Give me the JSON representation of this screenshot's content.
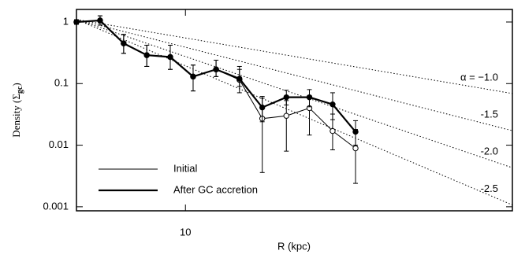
{
  "chart_data": {
    "type": "line",
    "xlabel": "R (kpc)",
    "ylabel_parts": [
      "Density (Σ",
      "gc",
      ")"
    ],
    "x": [
      5.0,
      5.81,
      6.75,
      7.82,
      9.08,
      10.5,
      12.15,
      14.1,
      16.3,
      19.0,
      22.0,
      25.5,
      29.5
    ],
    "xlim": [
      5,
      80
    ],
    "xticks": [
      10
    ],
    "xlog": true,
    "ylim": [
      0.00086,
      1.6
    ],
    "yticks": [
      1,
      0.1,
      0.01,
      0.001
    ],
    "ylog": true,
    "legend": "lower left",
    "series": [
      {
        "name": "Initial",
        "color": "#000000",
        "width": 1,
        "marker": "open",
        "values": [
          1.0,
          1.06,
          0.45,
          0.29,
          0.27,
          0.13,
          0.17,
          0.115,
          0.027,
          0.03,
          0.04,
          0.017,
          0.0089
        ],
        "lower": [
          0.92,
          0.89,
          0.31,
          0.19,
          0.17,
          0.076,
          0.13,
          0.071,
          0.0036,
          0.008,
          0.0146,
          0.0084,
          0.0024
        ],
        "upper": [
          1.09,
          1.26,
          0.63,
          0.42,
          0.42,
          0.2,
          0.24,
          0.19,
          0.062,
          0.053,
          0.064,
          0.032,
          0.018
        ]
      },
      {
        "name": "After GC accretion",
        "color": "#000000",
        "width": 2.2,
        "marker": "filled",
        "values": [
          1.0,
          1.06,
          0.45,
          0.29,
          0.27,
          0.13,
          0.17,
          0.12,
          0.041,
          0.06,
          0.06,
          0.046,
          0.0165
        ],
        "lower": [
          0.92,
          0.89,
          0.31,
          0.19,
          0.17,
          0.076,
          0.13,
          0.09,
          0.024,
          0.045,
          0.042,
          0.026,
          0.01
        ],
        "upper": [
          1.09,
          1.26,
          0.63,
          0.42,
          0.42,
          0.2,
          0.24,
          0.17,
          0.058,
          0.078,
          0.08,
          0.071,
          0.025
        ]
      }
    ],
    "power_laws": [
      {
        "label": "α = −1.0",
        "x": [
          5,
          80
        ],
        "values": [
          1.1,
          0.069
        ]
      },
      {
        "label": "-1.5",
        "x": [
          5,
          80
        ],
        "values": [
          1.1,
          0.0172
        ]
      },
      {
        "label": "-2.0",
        "x": [
          5,
          80
        ],
        "values": [
          1.1,
          0.0043
        ]
      },
      {
        "label": "-2.5",
        "x": [
          5,
          80
        ],
        "values": [
          1.1,
          0.00107
        ]
      }
    ]
  }
}
